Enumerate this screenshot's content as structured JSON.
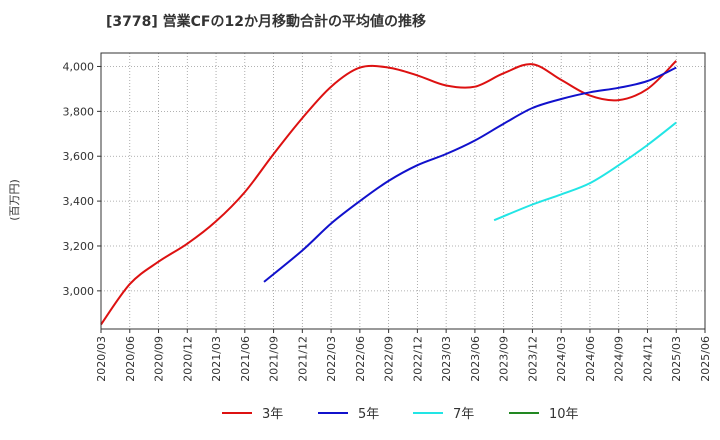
{
  "chart_data": {
    "type": "line",
    "title": "[3778]  営業CFの12か月移動合計の平均値の推移",
    "ylabel": "(百万円)",
    "xlabel": "",
    "ylim": [
      2830,
      4060
    ],
    "y_ticks": [
      3000,
      3200,
      3400,
      3600,
      3800,
      4000
    ],
    "y_tick_labels": [
      "3,000",
      "3,200",
      "3,400",
      "3,600",
      "3,800",
      "4,000"
    ],
    "x_ticks": [
      "2020/03",
      "2020/06",
      "2020/09",
      "2020/12",
      "2021/03",
      "2021/06",
      "2021/09",
      "2021/12",
      "2022/03",
      "2022/06",
      "2022/09",
      "2022/12",
      "2023/03",
      "2023/06",
      "2023/09",
      "2023/12",
      "2024/03",
      "2024/06",
      "2024/09",
      "2024/12",
      "2025/03",
      "2025/06"
    ],
    "grid": true,
    "legend_position": "bottom",
    "series": [
      {
        "name": "3年",
        "color": "#dd1111",
        "x": [
          "2020/03",
          "2020/06",
          "2020/09",
          "2020/12",
          "2021/03",
          "2021/06",
          "2021/09",
          "2021/12",
          "2022/03",
          "2022/06",
          "2022/09",
          "2022/12",
          "2023/03",
          "2023/06",
          "2023/09",
          "2023/12",
          "2024/03",
          "2024/06",
          "2024/09",
          "2024/12",
          "2025/03"
        ],
        "values": [
          2850,
          3030,
          3130,
          3210,
          3310,
          3440,
          3610,
          3770,
          3910,
          3995,
          3995,
          3960,
          3915,
          3910,
          3970,
          4010,
          3940,
          3870,
          3850,
          3900,
          4025
        ]
      },
      {
        "name": "5年",
        "color": "#1111cc",
        "x": [
          "2021/08",
          "2021/12",
          "2022/03",
          "2022/06",
          "2022/09",
          "2022/12",
          "2023/03",
          "2023/06",
          "2023/09",
          "2023/12",
          "2024/03",
          "2024/06",
          "2024/09",
          "2024/12",
          "2025/03"
        ],
        "values": [
          3040,
          3180,
          3300,
          3400,
          3490,
          3560,
          3610,
          3670,
          3745,
          3815,
          3855,
          3885,
          3905,
          3935,
          3995
        ]
      },
      {
        "name": "7年",
        "color": "#22e5e5",
        "x": [
          "2023/08",
          "2023/12",
          "2024/03",
          "2024/06",
          "2024/09",
          "2024/12",
          "2025/03"
        ],
        "values": [
          3315,
          3385,
          3430,
          3480,
          3560,
          3650,
          3750
        ]
      },
      {
        "name": "10年",
        "color": "#228822",
        "x": [],
        "values": []
      }
    ]
  }
}
